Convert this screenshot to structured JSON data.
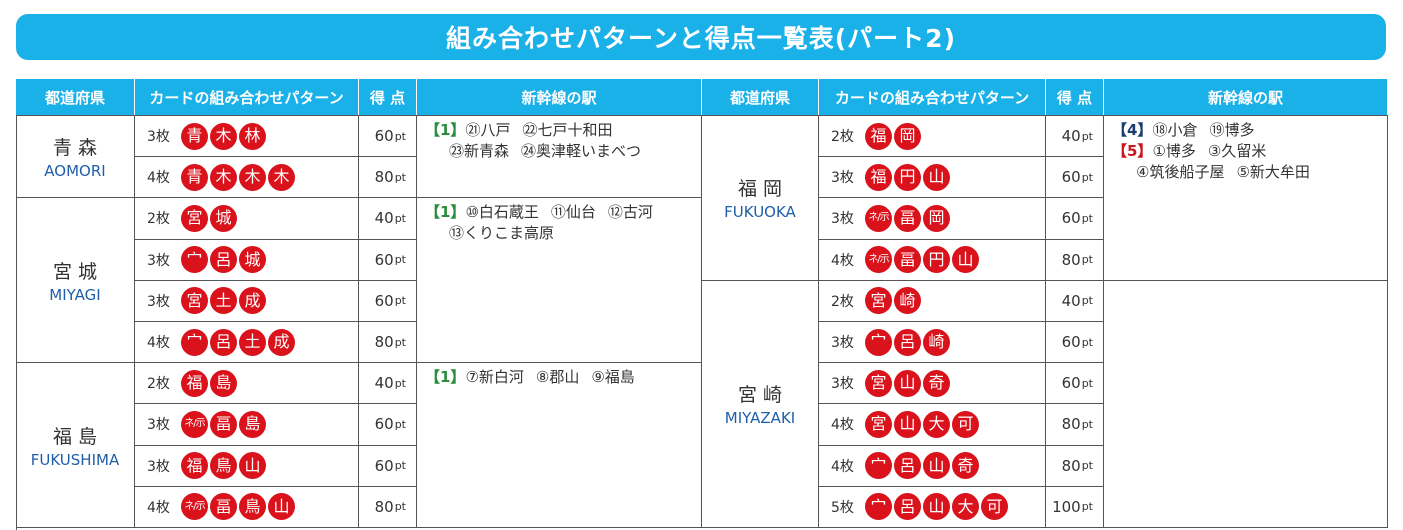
{
  "title": "組み合わせパターンと得点一覧表(パート2)",
  "headers": {
    "prefecture": "都道府県",
    "pattern": "カードの組み合わせパターン",
    "score": "得 点",
    "stations": "新幹線の駅"
  },
  "colors": {
    "header_bg": "#1ab0e8",
    "chip_red": "#d9121b",
    "group_green": "#2a8c3c",
    "group_red": "#c8141c"
  },
  "score_unit": "pt",
  "left": [
    {
      "jp": "青森",
      "en": "AOMORI",
      "rows": [
        {
          "count": "3枚",
          "chips": [
            "青",
            "木",
            "林"
          ],
          "score": "60"
        },
        {
          "count": "4枚",
          "chips": [
            "青",
            "木",
            "木",
            "木"
          ],
          "score": "80"
        }
      ],
      "stations": [
        {
          "group": "【1】",
          "items": [
            "㉑八戸",
            "㉒七戸十和田"
          ]
        },
        {
          "group": "",
          "items": [
            "㉓新青森",
            "㉔奥津軽いまべつ"
          ]
        }
      ]
    },
    {
      "jp": "宮城",
      "en": "MIYAGI",
      "rows": [
        {
          "count": "2枚",
          "chips": [
            "宮",
            "城"
          ],
          "score": "40"
        },
        {
          "count": "3枚",
          "chips": [
            "宀",
            "呂",
            "城"
          ],
          "score": "60"
        },
        {
          "count": "3枚",
          "chips": [
            "宮",
            "土",
            "成"
          ],
          "score": "60"
        },
        {
          "count": "4枚",
          "chips": [
            "宀",
            "呂",
            "土",
            "成"
          ],
          "score": "80"
        }
      ],
      "stations": [
        {
          "group": "【1】",
          "items": [
            "⑩白石蔵王",
            "⑪仙台",
            "⑫古河"
          ]
        },
        {
          "group": "",
          "items": [
            "⑬くりこま高原"
          ]
        }
      ]
    },
    {
      "jp": "福島",
      "en": "FUKUSHIMA",
      "rows": [
        {
          "count": "2枚",
          "chips": [
            "福",
            "島"
          ],
          "score": "40"
        },
        {
          "count": "3枚",
          "chips": [
            "ネ/示",
            "畐",
            "島"
          ],
          "score": "60"
        },
        {
          "count": "3枚",
          "chips": [
            "福",
            "鳥",
            "山"
          ],
          "score": "60"
        },
        {
          "count": "4枚",
          "chips": [
            "ネ/示",
            "畐",
            "鳥",
            "山"
          ],
          "score": "80"
        }
      ],
      "stations": [
        {
          "group": "【1】",
          "items": [
            "⑦新白河",
            "⑧郡山",
            "⑨福島"
          ]
        }
      ]
    }
  ],
  "right": [
    {
      "jp": "福岡",
      "en": "FUKUOKA",
      "rows": [
        {
          "count": "2枚",
          "chips": [
            "福",
            "岡"
          ],
          "score": "40"
        },
        {
          "count": "3枚",
          "chips": [
            "福",
            "円",
            "山"
          ],
          "score": "60"
        },
        {
          "count": "3枚",
          "chips": [
            "ネ/示",
            "畐",
            "岡"
          ],
          "score": "60"
        },
        {
          "count": "4枚",
          "chips": [
            "ネ/示",
            "畐",
            "円",
            "山"
          ],
          "score": "80"
        }
      ],
      "stations": [
        {
          "group": "【4】",
          "items": [
            "⑱小倉",
            "⑲博多"
          ]
        },
        {
          "group": "【5】",
          "items": [
            "①博多",
            "③久留米"
          ]
        },
        {
          "group": "",
          "items": [
            "④筑後船子屋",
            "⑤新大牟田"
          ]
        }
      ]
    },
    {
      "jp": "宮崎",
      "en": "MIYAZAKI",
      "rows": [
        {
          "count": "2枚",
          "chips": [
            "宮",
            "崎"
          ],
          "score": "40"
        },
        {
          "count": "3枚",
          "chips": [
            "宀",
            "呂",
            "崎"
          ],
          "score": "60"
        },
        {
          "count": "3枚",
          "chips": [
            "宮",
            "山",
            "奇"
          ],
          "score": "60"
        },
        {
          "count": "4枚",
          "chips": [
            "宮",
            "山",
            "大",
            "可"
          ],
          "score": "80"
        },
        {
          "count": "4枚",
          "chips": [
            "宀",
            "呂",
            "山",
            "奇"
          ],
          "score": "80"
        },
        {
          "count": "5枚",
          "chips": [
            "宀",
            "呂",
            "山",
            "大",
            "可"
          ],
          "score": "100"
        }
      ],
      "stations": []
    }
  ]
}
